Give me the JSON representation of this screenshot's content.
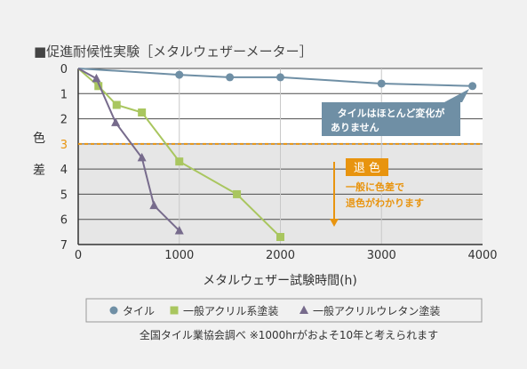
{
  "chart_data": {
    "type": "line",
    "title": "■促進耐候性実験［メタルウェザーメーター］",
    "xlabel": "メタルウェザー試験時間(h)",
    "ylabel": "色差",
    "xlim": [
      0,
      4000
    ],
    "ylim": [
      0,
      7
    ],
    "x_ticks": [
      "0",
      "1000",
      "2000",
      "3000",
      "4000"
    ],
    "y_ticks": [
      "0",
      "1",
      "2",
      "3",
      "4",
      "5",
      "6",
      "7"
    ],
    "y_inverted": true,
    "grid": true,
    "threshold": {
      "value": 3,
      "label": "退 色",
      "description_line1": "一般に色差で",
      "description_line2": "退色がわかります",
      "color": "#e8940f"
    },
    "series": [
      {
        "name": "タイル",
        "marker": "circle",
        "color": "#6f8fa5",
        "x": [
          0,
          1000,
          1500,
          2000,
          3000,
          3900
        ],
        "y": [
          0,
          0.25,
          0.35,
          0.35,
          0.6,
          0.7
        ]
      },
      {
        "name": "一般アクリル系塗装",
        "marker": "square",
        "color": "#a9c65f",
        "x": [
          0,
          200,
          380,
          630,
          1000,
          1570,
          2000
        ],
        "y": [
          0,
          0.7,
          1.45,
          1.75,
          3.7,
          5.0,
          6.7
        ]
      },
      {
        "name": "一般アクリルウレタン塗装",
        "marker": "triangle",
        "color": "#776b8c",
        "x": [
          0,
          180,
          370,
          630,
          750,
          1000
        ],
        "y": [
          0,
          0.4,
          2.15,
          3.55,
          5.45,
          6.45
        ]
      }
    ],
    "annotations": [
      {
        "id": "tile-callout",
        "line1": "タイルはほとんど変化が",
        "line2": "ありません",
        "color": "#6f8fa5"
      }
    ],
    "legend_position": "bottom",
    "footnote": "全国タイル業協会調べ ※1000hrがおよそ10年と考えられます"
  }
}
